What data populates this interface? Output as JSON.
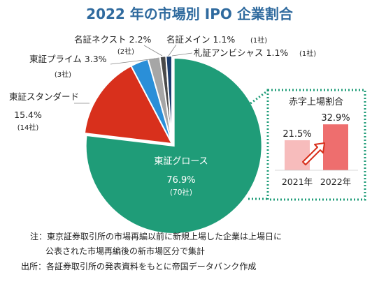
{
  "title": "2022 年の市場別 IPO 企業割合",
  "colors": {
    "growth": "#1f9c78",
    "standard": "#d8301c",
    "prime": "#2a8fd8",
    "next": "#a6a6a6",
    "main": "#4a4a4a",
    "ambitious": "#1d3e6e",
    "title": "#2f6a9e",
    "box_border": "#1f9c78",
    "bar_2021": "#f7bcbc",
    "bar_2022": "#ee6e6e",
    "arrow": "#d8301c"
  },
  "chart_data": [
    {
      "type": "pie",
      "start_angle_deg": 0,
      "slices": [
        {
          "key": "growth",
          "label": "東証グロース",
          "value": "76.9%",
          "count": "(70社)",
          "pct": 76.9
        },
        {
          "key": "standard",
          "label": "東証スタンダード",
          "value": "15.4%",
          "count": "(14社)",
          "pct": 15.4
        },
        {
          "key": "prime",
          "label": "東証プライム",
          "value": "3.3%",
          "count": "(3社)",
          "pct": 3.3
        },
        {
          "key": "next",
          "label": "名証ネクスト",
          "value": "2.2%",
          "count": "(2社)",
          "pct": 2.2
        },
        {
          "key": "main",
          "label": "名証メイン",
          "value": "1.1%",
          "count": "(1社)",
          "pct": 1.1
        },
        {
          "key": "ambitious",
          "label": "札証アンビシャス",
          "value": "1.1%",
          "count": "(1社)",
          "pct": 1.1
        }
      ]
    },
    {
      "type": "bar",
      "title": "赤字上場割合",
      "categories": [
        "2021年",
        "2022年"
      ],
      "values": [
        21.5,
        32.9
      ],
      "value_labels": [
        "21.5%",
        "32.9%"
      ],
      "ylim": [
        0,
        35
      ]
    }
  ],
  "notes": {
    "line1": "注：東京証券取引所の市場再編以前に新規上場した企業は上場日に",
    "line2": "公表された市場再編後の新市場区分で集計",
    "line3": "出所：各証券取引所の発表資料をもとに帝国データバンク作成"
  }
}
